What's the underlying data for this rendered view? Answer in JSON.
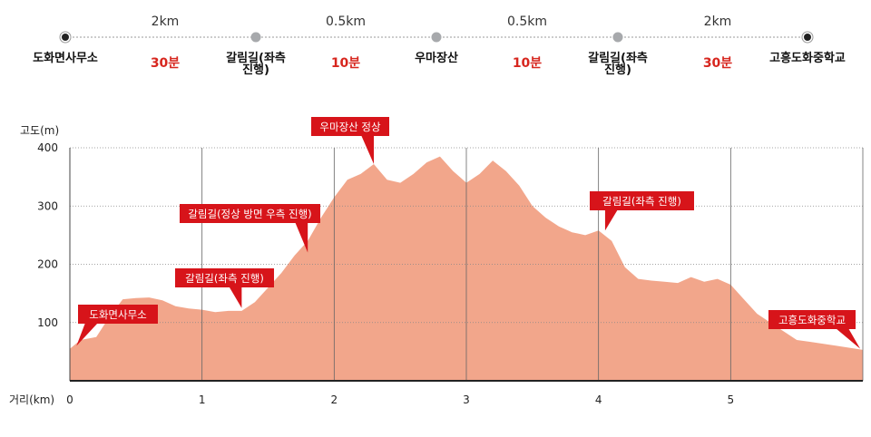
{
  "route": {
    "stops": [
      "도화면사무소",
      "갈림길(좌측\n진행)",
      "우마장산",
      "갈림길(좌측\n진행)",
      "고흥도화중학교"
    ],
    "segments": [
      {
        "distance": "2km",
        "time": "30분"
      },
      {
        "distance": "0.5km",
        "time": "10분"
      },
      {
        "distance": "0.5km",
        "time": "10분"
      },
      {
        "distance": "2km",
        "time": "30분"
      }
    ],
    "colors": {
      "time": "#d7261e",
      "line": "#999999",
      "end_dot": "#222222",
      "mid_dot": "#a7a9ac"
    }
  },
  "chart_data": {
    "type": "area",
    "ylabel": "고도(m)",
    "xlabel": "거리(km)",
    "ylim": [
      0,
      400
    ],
    "xlim": [
      0,
      6
    ],
    "yticks": [
      "100",
      "200",
      "300",
      "400"
    ],
    "xticks": [
      "0",
      "1",
      "2",
      "3",
      "4",
      "5"
    ],
    "fill_color": "#f2a68b",
    "callout_color": "#d7141a",
    "x": [
      0,
      0.08,
      0.2,
      0.3,
      0.4,
      0.5,
      0.6,
      0.7,
      0.8,
      0.9,
      1.0,
      1.1,
      1.2,
      1.3,
      1.4,
      1.5,
      1.6,
      1.7,
      1.8,
      1.9,
      2.0,
      2.1,
      2.2,
      2.3,
      2.4,
      2.5,
      2.6,
      2.7,
      2.8,
      2.9,
      3.0,
      3.1,
      3.2,
      3.3,
      3.4,
      3.5,
      3.6,
      3.7,
      3.8,
      3.9,
      4.0,
      4.1,
      4.2,
      4.3,
      4.4,
      4.5,
      4.6,
      4.7,
      4.8,
      4.9,
      5.0,
      5.1,
      5.2,
      5.3,
      5.4,
      5.5,
      5.6,
      5.8,
      6.0
    ],
    "y": [
      55,
      70,
      75,
      110,
      140,
      142,
      143,
      138,
      128,
      124,
      122,
      118,
      120,
      120,
      135,
      160,
      185,
      215,
      240,
      280,
      315,
      345,
      355,
      372,
      345,
      340,
      355,
      375,
      385,
      360,
      340,
      355,
      378,
      360,
      335,
      300,
      280,
      265,
      255,
      250,
      258,
      240,
      195,
      175,
      172,
      170,
      168,
      178,
      170,
      175,
      165,
      140,
      115,
      100,
      85,
      70,
      67,
      60,
      53
    ],
    "annotations": [
      {
        "label": "도화면사무소",
        "x": 0.05,
        "y": 60
      },
      {
        "label": "갈림길(좌측 진행)",
        "x": 1.3,
        "y": 125
      },
      {
        "label": "갈림길(정상 방면 우측 진행)",
        "x": 1.8,
        "y": 220
      },
      {
        "label": "우마장산 정상",
        "x": 2.3,
        "y": 372
      },
      {
        "label": "갈림길(좌측 진행)",
        "x": 4.05,
        "y": 258
      },
      {
        "label": "고흥도화중학교",
        "x": 5.98,
        "y": 55
      }
    ]
  }
}
